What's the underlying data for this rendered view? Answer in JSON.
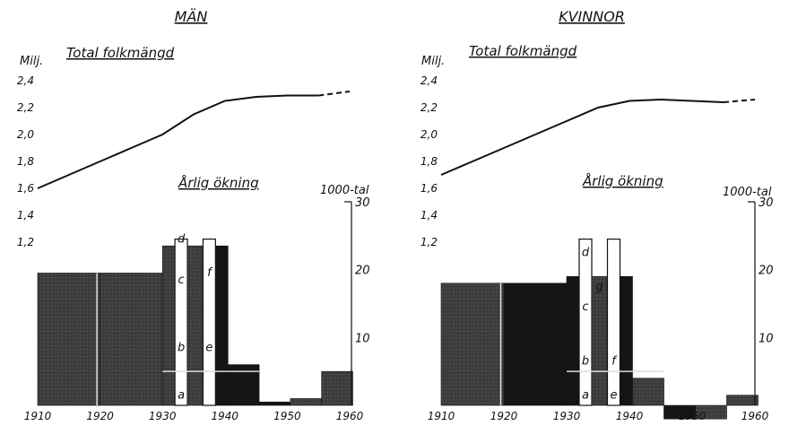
{
  "chart_data": [
    {
      "type": "line+bar",
      "title": "MÄN",
      "line_title": "Total folkmängd",
      "bar_title": "Årlig ökning",
      "left_unit": "Milj.",
      "right_unit": "1000-tal",
      "x_ticks": [
        "1910",
        "1920",
        "1930",
        "1940",
        "1950",
        "1960"
      ],
      "left_ticks": [
        "1,2",
        "1,4",
        "1,6",
        "1,8",
        "2,0",
        "2,2",
        "2,4"
      ],
      "right_ticks": [
        "10",
        "20",
        "30"
      ],
      "ylim_left": [
        1.2,
        2.4
      ],
      "ylim_right": [
        0,
        30
      ],
      "line": {
        "x": [
          1910,
          1915,
          1920,
          1925,
          1930,
          1935,
          1940,
          1945,
          1950,
          1955
        ],
        "y": [
          1.6,
          1.7,
          1.8,
          1.9,
          2.0,
          2.15,
          2.25,
          2.28,
          2.29,
          2.29
        ]
      },
      "line_projection": {
        "x": [
          1955,
          1960
        ],
        "y": [
          2.29,
          2.32
        ]
      },
      "bars": [
        {
          "from": 1910,
          "to": 1920,
          "value": 19.5,
          "style": "grey"
        },
        {
          "from": 1920,
          "to": 1930,
          "value": 19.5,
          "style": "grey"
        },
        {
          "from": 1930,
          "to": 1932,
          "value": 23.5,
          "style": "grey"
        },
        {
          "from": 1932,
          "to": 1934,
          "value": 24.5,
          "style": "white"
        },
        {
          "from": 1934,
          "to": 1936.5,
          "value": 23.5,
          "style": "grey"
        },
        {
          "from": 1936.5,
          "to": 1938.5,
          "value": 24.5,
          "style": "white"
        },
        {
          "from": 1938.5,
          "to": 1940.5,
          "value": 23.5,
          "style": "black"
        },
        {
          "from": 1940.5,
          "to": 1945.5,
          "value": 6,
          "style": "black"
        },
        {
          "from": 1945.5,
          "to": 1950.5,
          "value": 0.5,
          "style": "black"
        },
        {
          "from": 1950.5,
          "to": 1955.5,
          "value": 1,
          "style": "grey"
        },
        {
          "from": 1955.5,
          "to": 1960.5,
          "value": 5,
          "style": "grey"
        }
      ],
      "segment_labels": [
        "a",
        "b",
        "c",
        "d",
        "e",
        "f"
      ]
    },
    {
      "type": "line+bar",
      "title": "KVINNOR",
      "line_title": "Total folkmängd",
      "bar_title": "Årlig ökning",
      "left_unit": "Milj.",
      "right_unit": "1000-tal",
      "x_ticks": [
        "1910",
        "1920",
        "1930",
        "1940",
        "1950",
        "1960"
      ],
      "left_ticks": [
        "1,2",
        "1,4",
        "1,6",
        "1,8",
        "2,0",
        "2,2",
        "2,4"
      ],
      "right_ticks": [
        "10",
        "20",
        "30"
      ],
      "ylim_left": [
        1.2,
        2.4
      ],
      "ylim_right": [
        0,
        30
      ],
      "line": {
        "x": [
          1910,
          1915,
          1920,
          1925,
          1930,
          1935,
          1940,
          1945,
          1950,
          1955
        ],
        "y": [
          1.7,
          1.8,
          1.9,
          2.0,
          2.1,
          2.2,
          2.25,
          2.26,
          2.25,
          2.24
        ]
      },
      "line_projection": {
        "x": [
          1955,
          1960
        ],
        "y": [
          2.24,
          2.26
        ]
      },
      "bars": [
        {
          "from": 1910,
          "to": 1920,
          "value": 18,
          "style": "grey"
        },
        {
          "from": 1920,
          "to": 1930,
          "value": 18,
          "style": "black"
        },
        {
          "from": 1930,
          "to": 1932,
          "value": 19,
          "style": "black"
        },
        {
          "from": 1932,
          "to": 1934,
          "value": 24.5,
          "style": "white"
        },
        {
          "from": 1934,
          "to": 1936.5,
          "value": 19,
          "style": "grey"
        },
        {
          "from": 1936.5,
          "to": 1938.5,
          "value": 24.5,
          "style": "white"
        },
        {
          "from": 1938.5,
          "to": 1940.5,
          "value": 19,
          "style": "black"
        },
        {
          "from": 1940.5,
          "to": 1945.5,
          "value": 4,
          "style": "grey"
        },
        {
          "from": 1945.5,
          "to": 1950.5,
          "value": -2,
          "style": "black"
        },
        {
          "from": 1950.5,
          "to": 1955.5,
          "value": -2,
          "style": "grey"
        },
        {
          "from": 1955.5,
          "to": 1960.5,
          "value": 1.5,
          "style": "grey"
        }
      ],
      "segment_labels": [
        "a",
        "b",
        "c",
        "d",
        "e",
        "f",
        "g"
      ]
    }
  ]
}
